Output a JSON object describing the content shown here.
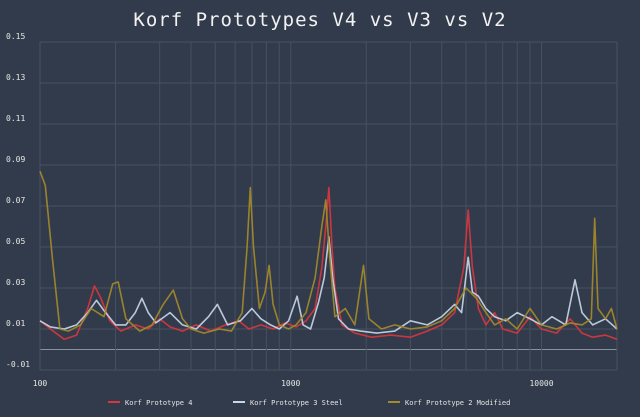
{
  "chart_data": {
    "type": "line",
    "title": "Korf Prototypes V4 vs V3 vs V2",
    "xscale": "log",
    "xlim": [
      100,
      20000
    ],
    "ylim": [
      -0.01,
      0.15
    ],
    "xticks": [
      {
        "value": 100,
        "label": "100"
      },
      {
        "value": 1000,
        "label": "1000"
      },
      {
        "value": 10000,
        "label": "10000"
      }
    ],
    "yticks": [
      {
        "value": 0.15,
        "label": "0.15"
      },
      {
        "value": 0.13,
        "label": "0.13"
      },
      {
        "value": 0.11,
        "label": "0.11"
      },
      {
        "value": 0.09,
        "label": "0.09"
      },
      {
        "value": 0.07,
        "label": "0.07"
      },
      {
        "value": 0.05,
        "label": "0.05"
      },
      {
        "value": 0.03,
        "label": "0.03"
      },
      {
        "value": 0.01,
        "label": "0.01"
      },
      {
        "value": -0.01,
        "label": "-0.01"
      }
    ],
    "legend_position": "bottom-center",
    "series": [
      {
        "name": "Korf Prototype 4",
        "color": "#d9363e",
        "points": [
          [
            100,
            0.014
          ],
          [
            110,
            0.01
          ],
          [
            125,
            0.005
          ],
          [
            140,
            0.007
          ],
          [
            155,
            0.02
          ],
          [
            165,
            0.031
          ],
          [
            175,
            0.025
          ],
          [
            190,
            0.014
          ],
          [
            210,
            0.009
          ],
          [
            240,
            0.012
          ],
          [
            270,
            0.01
          ],
          [
            300,
            0.015
          ],
          [
            330,
            0.011
          ],
          [
            370,
            0.009
          ],
          [
            420,
            0.012
          ],
          [
            480,
            0.009
          ],
          [
            550,
            0.012
          ],
          [
            620,
            0.014
          ],
          [
            680,
            0.01
          ],
          [
            760,
            0.012
          ],
          [
            850,
            0.01
          ],
          [
            950,
            0.013
          ],
          [
            1050,
            0.011
          ],
          [
            1150,
            0.014
          ],
          [
            1250,
            0.02
          ],
          [
            1330,
            0.04
          ],
          [
            1380,
            0.06
          ],
          [
            1420,
            0.079
          ],
          [
            1460,
            0.05
          ],
          [
            1500,
            0.03
          ],
          [
            1600,
            0.012
          ],
          [
            1800,
            0.008
          ],
          [
            2100,
            0.006
          ],
          [
            2500,
            0.007
          ],
          [
            3000,
            0.006
          ],
          [
            3500,
            0.009
          ],
          [
            4000,
            0.012
          ],
          [
            4500,
            0.018
          ],
          [
            4900,
            0.04
          ],
          [
            5100,
            0.068
          ],
          [
            5300,
            0.04
          ],
          [
            5600,
            0.02
          ],
          [
            6000,
            0.012
          ],
          [
            6500,
            0.018
          ],
          [
            7000,
            0.01
          ],
          [
            8000,
            0.008
          ],
          [
            9000,
            0.016
          ],
          [
            10000,
            0.01
          ],
          [
            11500,
            0.008
          ],
          [
            13000,
            0.015
          ],
          [
            14500,
            0.008
          ],
          [
            16000,
            0.006
          ],
          [
            18000,
            0.007
          ],
          [
            20000,
            0.005
          ]
        ]
      },
      {
        "name": "Korf Prototype 3 Steel",
        "color": "#c5d6e6",
        "points": [
          [
            100,
            0.014
          ],
          [
            110,
            0.011
          ],
          [
            125,
            0.01
          ],
          [
            140,
            0.012
          ],
          [
            155,
            0.018
          ],
          [
            168,
            0.024
          ],
          [
            180,
            0.019
          ],
          [
            200,
            0.012
          ],
          [
            220,
            0.012
          ],
          [
            240,
            0.018
          ],
          [
            255,
            0.025
          ],
          [
            270,
            0.018
          ],
          [
            290,
            0.013
          ],
          [
            330,
            0.018
          ],
          [
            370,
            0.012
          ],
          [
            420,
            0.01
          ],
          [
            470,
            0.016
          ],
          [
            510,
            0.022
          ],
          [
            560,
            0.012
          ],
          [
            630,
            0.014
          ],
          [
            700,
            0.02
          ],
          [
            760,
            0.015
          ],
          [
            830,
            0.012
          ],
          [
            900,
            0.01
          ],
          [
            980,
            0.014
          ],
          [
            1060,
            0.026
          ],
          [
            1120,
            0.012
          ],
          [
            1200,
            0.01
          ],
          [
            1290,
            0.023
          ],
          [
            1360,
            0.035
          ],
          [
            1420,
            0.055
          ],
          [
            1470,
            0.035
          ],
          [
            1550,
            0.015
          ],
          [
            1700,
            0.01
          ],
          [
            1900,
            0.009
          ],
          [
            2200,
            0.008
          ],
          [
            2600,
            0.009
          ],
          [
            3000,
            0.014
          ],
          [
            3500,
            0.012
          ],
          [
            4000,
            0.016
          ],
          [
            4500,
            0.022
          ],
          [
            4800,
            0.018
          ],
          [
            5100,
            0.045
          ],
          [
            5300,
            0.028
          ],
          [
            5600,
            0.026
          ],
          [
            6000,
            0.02
          ],
          [
            6500,
            0.016
          ],
          [
            7200,
            0.014
          ],
          [
            8000,
            0.018
          ],
          [
            9000,
            0.015
          ],
          [
            10000,
            0.012
          ],
          [
            11000,
            0.016
          ],
          [
            12500,
            0.012
          ],
          [
            13600,
            0.034
          ],
          [
            14500,
            0.018
          ],
          [
            16000,
            0.012
          ],
          [
            18000,
            0.015
          ],
          [
            20000,
            0.01
          ]
        ]
      },
      {
        "name": "Korf Prototype 2 Modified",
        "color": "#a38a2a",
        "points": [
          [
            100,
            0.087
          ],
          [
            105,
            0.08
          ],
          [
            112,
            0.045
          ],
          [
            120,
            0.01
          ],
          [
            130,
            0.009
          ],
          [
            145,
            0.012
          ],
          [
            160,
            0.02
          ],
          [
            180,
            0.016
          ],
          [
            195,
            0.032
          ],
          [
            205,
            0.033
          ],
          [
            220,
            0.015
          ],
          [
            250,
            0.009
          ],
          [
            280,
            0.012
          ],
          [
            310,
            0.022
          ],
          [
            340,
            0.029
          ],
          [
            370,
            0.015
          ],
          [
            400,
            0.01
          ],
          [
            450,
            0.008
          ],
          [
            520,
            0.01
          ],
          [
            580,
            0.009
          ],
          [
            640,
            0.018
          ],
          [
            670,
            0.05
          ],
          [
            690,
            0.079
          ],
          [
            710,
            0.05
          ],
          [
            750,
            0.02
          ],
          [
            790,
            0.028
          ],
          [
            820,
            0.041
          ],
          [
            850,
            0.022
          ],
          [
            900,
            0.012
          ],
          [
            980,
            0.01
          ],
          [
            1050,
            0.012
          ],
          [
            1150,
            0.018
          ],
          [
            1250,
            0.035
          ],
          [
            1330,
            0.06
          ],
          [
            1380,
            0.073
          ],
          [
            1430,
            0.045
          ],
          [
            1500,
            0.016
          ],
          [
            1650,
            0.02
          ],
          [
            1800,
            0.012
          ],
          [
            1950,
            0.041
          ],
          [
            2050,
            0.015
          ],
          [
            2300,
            0.01
          ],
          [
            2600,
            0.012
          ],
          [
            3000,
            0.01
          ],
          [
            3500,
            0.011
          ],
          [
            4000,
            0.014
          ],
          [
            4500,
            0.02
          ],
          [
            5000,
            0.03
          ],
          [
            5500,
            0.025
          ],
          [
            6000,
            0.018
          ],
          [
            6500,
            0.012
          ],
          [
            7200,
            0.015
          ],
          [
            8000,
            0.01
          ],
          [
            9000,
            0.02
          ],
          [
            10000,
            0.012
          ],
          [
            11500,
            0.01
          ],
          [
            13000,
            0.013
          ],
          [
            14500,
            0.012
          ],
          [
            15800,
            0.015
          ],
          [
            16300,
            0.064
          ],
          [
            16800,
            0.02
          ],
          [
            18000,
            0.015
          ],
          [
            19000,
            0.02
          ],
          [
            20000,
            0.01
          ]
        ]
      }
    ]
  }
}
